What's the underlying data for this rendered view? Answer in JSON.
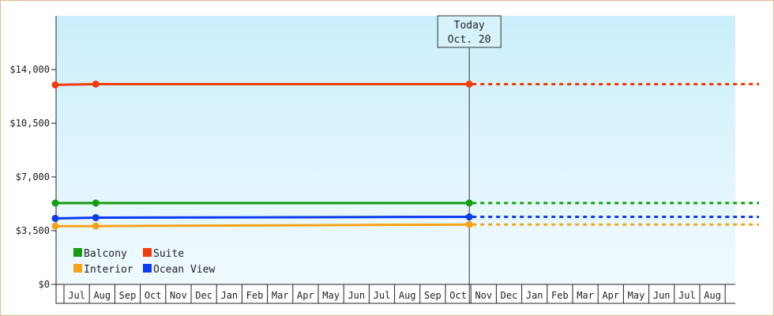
{
  "chart_data": {
    "type": "line",
    "title": "",
    "xlabel": "",
    "ylabel": "",
    "ylim": [
      0,
      17500
    ],
    "y_ticks": [
      0,
      3500,
      7000,
      10500,
      14000
    ],
    "y_tick_labels": [
      "$0",
      "$3,500",
      "$7,000",
      "$10,500",
      "$14,000"
    ],
    "x_tick_labels": [
      "Jul",
      "Aug",
      "Sep",
      "Oct",
      "Nov",
      "Dec",
      "Jan",
      "Feb",
      "Mar",
      "Apr",
      "May",
      "Jun",
      "Jul",
      "Aug",
      "Sep",
      "Oct",
      "Nov",
      "Dec",
      "Jan",
      "Feb",
      "Mar",
      "Apr",
      "May",
      "Jun",
      "Jul",
      "Aug"
    ],
    "today_marker": {
      "line1": "Today",
      "line2": "Oct. 20",
      "month_index": 15
    },
    "grid": false,
    "legend_placement": "bottom-left",
    "series": [
      {
        "name": "Suite",
        "color": "#f13c0a",
        "points": [
          [
            -0.9,
            13000
          ],
          [
            0.75,
            13050
          ],
          [
            15.0,
            13050
          ]
        ],
        "projected_to": 26.5
      },
      {
        "name": "Balcony",
        "color": "#149d11",
        "points": [
          [
            -0.9,
            5300
          ],
          [
            0.75,
            5300
          ],
          [
            15.0,
            5300
          ]
        ],
        "projected_to": 26.5
      },
      {
        "name": "Ocean View",
        "color": "#0b3cf1",
        "points": [
          [
            -0.9,
            4300
          ],
          [
            0.75,
            4350
          ],
          [
            15.0,
            4400
          ]
        ],
        "projected_to": 26.5
      },
      {
        "name": "Interior",
        "color": "#f6a31a",
        "points": [
          [
            -0.9,
            3800
          ],
          [
            0.75,
            3800
          ],
          [
            15.0,
            3900
          ]
        ],
        "projected_to": 26.5
      }
    ],
    "legend": [
      {
        "name": "Balcony",
        "color": "#149d11"
      },
      {
        "name": "Suite",
        "color": "#f13c0a"
      },
      {
        "name": "Interior",
        "color": "#f6a31a"
      },
      {
        "name": "Ocean View",
        "color": "#0b3cf1"
      }
    ]
  }
}
